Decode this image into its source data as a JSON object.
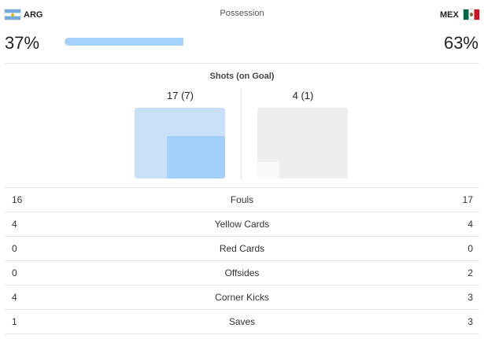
{
  "possession": {
    "title": "Possession",
    "home": {
      "code": "ARG",
      "flag": "argentina-flag-icon",
      "value_label": "37%",
      "share": 0.37
    },
    "away": {
      "code": "MEX",
      "flag": "mexico-flag-icon",
      "value_label": "63%",
      "share": 0.63
    }
  },
  "shots": {
    "title": "Shots (on Goal)",
    "home": {
      "label": "17 (7)",
      "total": 17,
      "on_goal": 7
    },
    "away": {
      "label": "4 (1)",
      "total": 4,
      "on_goal": 1
    }
  },
  "stats": [
    {
      "label": "Fouls",
      "home": "16",
      "away": "17"
    },
    {
      "label": "Yellow Cards",
      "home": "4",
      "away": "4"
    },
    {
      "label": "Red Cards",
      "home": "0",
      "away": "0"
    },
    {
      "label": "Offsides",
      "home": "0",
      "away": "2"
    },
    {
      "label": "Corner Kicks",
      "home": "4",
      "away": "3"
    },
    {
      "label": "Saves",
      "home": "1",
      "away": "3"
    }
  ],
  "colors": {
    "home_accent": "#a5d1fb",
    "home_light": "#c8e1f9",
    "away_light": "#eeeeef"
  }
}
